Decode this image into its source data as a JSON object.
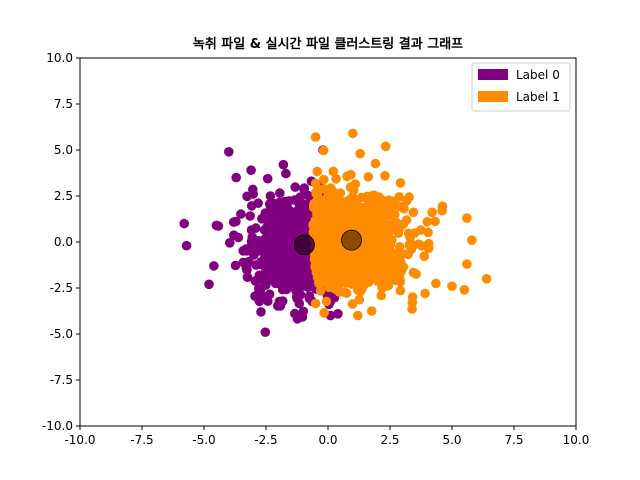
{
  "chart_data": {
    "type": "scatter",
    "title": "녹취 파일 & 실시간 파일 클러스트링 결과 그래프",
    "xlabel": "",
    "ylabel": "",
    "xlim": [
      -10,
      10
    ],
    "ylim": [
      -10,
      10
    ],
    "xticks": [
      "-10.0",
      "-7.5",
      "-5.0",
      "-2.5",
      "0.0",
      "2.5",
      "5.0",
      "7.5",
      "10.0"
    ],
    "yticks": [
      "10.0",
      "7.5",
      "5.0",
      "2.5",
      "0.0",
      "-2.5",
      "-5.0",
      "-7.5",
      "-10.0"
    ],
    "grid": false,
    "legend_position": "top-right",
    "series": [
      {
        "name": "Label 0",
        "color": "#800080",
        "cluster_center": [
          -1.0,
          -0.2
        ],
        "cluster_spread": [
          1.1,
          1.3
        ],
        "approx_points": 900,
        "outliers": [
          [
            -4.0,
            4.9
          ],
          [
            -5.8,
            1.0
          ],
          [
            -5.7,
            -0.2
          ],
          [
            -4.8,
            -2.3
          ],
          [
            -4.6,
            -1.3
          ],
          [
            -3.7,
            3.5
          ],
          [
            -1.8,
            4.2
          ],
          [
            -2.7,
            -3.8
          ],
          [
            0.1,
            -4.0
          ],
          [
            -0.2,
            5.0
          ],
          [
            -4.5,
            0.9
          ],
          [
            -3.1,
            3.9
          ],
          [
            0.4,
            -3.9
          ]
        ]
      },
      {
        "name": "Label 1",
        "color": "#ff8c00",
        "cluster_center": [
          0.9,
          0.1
        ],
        "cluster_spread": [
          1.2,
          1.3
        ],
        "approx_points": 1000,
        "outliers": [
          [
            1.0,
            5.9
          ],
          [
            1.3,
            4.8
          ],
          [
            -0.5,
            5.7
          ],
          [
            5.6,
            1.3
          ],
          [
            5.8,
            0.1
          ],
          [
            6.4,
            -2.0
          ],
          [
            5.5,
            -2.6
          ],
          [
            5.0,
            -2.4
          ],
          [
            4.6,
            1.7
          ],
          [
            3.4,
            -3.3
          ],
          [
            1.2,
            -4.0
          ],
          [
            5.6,
            -1.2
          ],
          [
            4.0,
            1.1
          ],
          [
            2.3,
            3.6
          ]
        ]
      }
    ],
    "centroids": [
      {
        "label": "Label 0",
        "x": -0.95,
        "y": -0.15,
        "color": "#3a0033"
      },
      {
        "label": "Label 1",
        "x": 0.95,
        "y": 0.1,
        "color": "#7a3d00"
      }
    ]
  }
}
